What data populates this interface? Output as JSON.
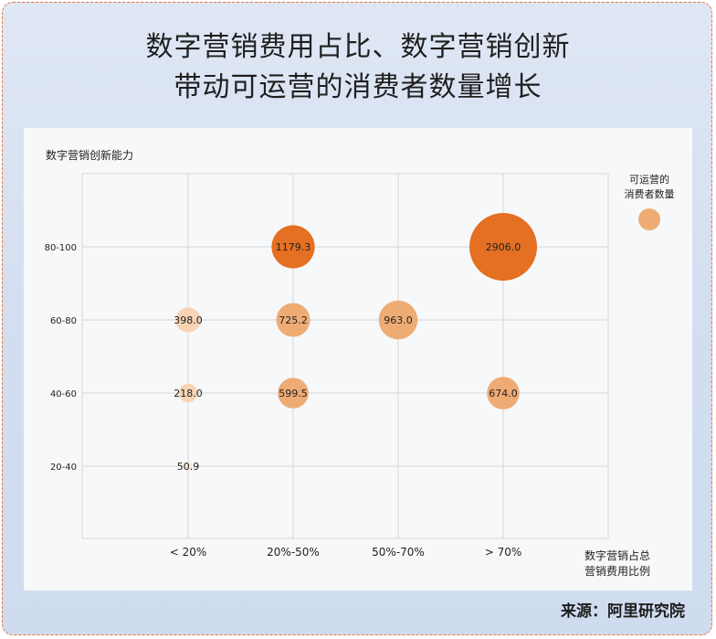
{
  "title_line1": "数字营销费用占比、数字营销创新",
  "title_line2": "带动可运营的消费者数量增长",
  "source": "来源：阿里研究院",
  "chart_data": {
    "type": "scatter",
    "ylabel": "数字营销创新能力",
    "xlabel_line1": "数字营销占总",
    "xlabel_line2": "营销费用比例",
    "x_categories": [
      "< 20%",
      "20%-50%",
      "50%-70%",
      "> 70%"
    ],
    "y_categories": [
      "20-40",
      "40-60",
      "60-80",
      "80-100"
    ],
    "size_legend_line1": "可运营的",
    "size_legend_line2": "消费者数量",
    "grid": true,
    "points": [
      {
        "x": "< 20%",
        "y": "20-40",
        "value": 50.9,
        "label": "50.9",
        "color": "#fbe7d6"
      },
      {
        "x": "< 20%",
        "y": "40-60",
        "value": 218.0,
        "label": "218.0",
        "color": "#f7d4b4"
      },
      {
        "x": "< 20%",
        "y": "60-80",
        "value": 398.0,
        "label": "398.0",
        "color": "#f7d4b4"
      },
      {
        "x": "20%-50%",
        "y": "40-60",
        "value": 599.5,
        "label": "599.5",
        "color": "#eeac74"
      },
      {
        "x": "20%-50%",
        "y": "60-80",
        "value": 725.2,
        "label": "725.2",
        "color": "#eeac74"
      },
      {
        "x": "20%-50%",
        "y": "80-100",
        "value": 1179.3,
        "label": "1179.3",
        "color": "#e56f22"
      },
      {
        "x": "50%-70%",
        "y": "60-80",
        "value": 963.0,
        "label": "963.0",
        "color": "#eeac74"
      },
      {
        "x": "> 70%",
        "y": "40-60",
        "value": 674.0,
        "label": "674.0",
        "color": "#eeac74"
      },
      {
        "x": "> 70%",
        "y": "80-100",
        "value": 2906.0,
        "label": "2906.0",
        "color": "#e56f22"
      }
    ],
    "legend_color": "#eeac74"
  }
}
